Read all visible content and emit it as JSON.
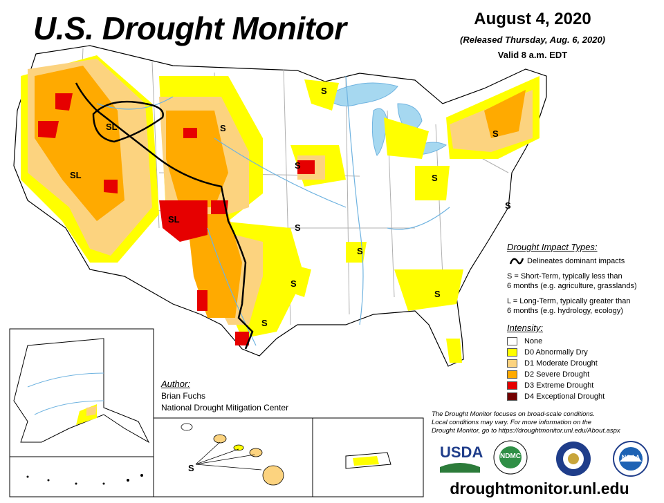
{
  "header": {
    "title": "U.S. Drought Monitor",
    "date": "August 4, 2020",
    "released": "(Released Thursday, Aug. 6, 2020)",
    "valid": "Valid 8 a.m. EDT"
  },
  "impact_types": {
    "heading": "Drought Impact Types:",
    "delineates": "Delineates dominant impacts",
    "short_term_line1": "S = Short-Term, typically less than",
    "short_term_line2": "6 months (e.g. agriculture, grasslands)",
    "long_term_line1": "L = Long-Term, typically greater than",
    "long_term_line2": "6 months (e.g. hydrology, ecology)"
  },
  "intensity": {
    "heading": "Intensity:",
    "items": [
      {
        "label": "None",
        "color": "#ffffff"
      },
      {
        "label": "D0 Abnormally Dry",
        "color": "#ffff00"
      },
      {
        "label": "D1 Moderate Drought",
        "color": "#fcd37f"
      },
      {
        "label": "D2 Severe Drought",
        "color": "#ffaa00"
      },
      {
        "label": "D3 Extreme Drought",
        "color": "#e60000"
      },
      {
        "label": "D4 Exceptional Drought",
        "color": "#730000"
      }
    ]
  },
  "author": {
    "heading": "Author:",
    "name": "Brian Fuchs",
    "org": "National Drought Mitigation Center"
  },
  "note": {
    "line1": "The Drought Monitor focuses on broad-scale conditions.",
    "line2": "Local conditions may vary. For more information on the",
    "line3": "Drought Monitor, go to https://droughtmonitor.unl.edu/About.aspx"
  },
  "logos": {
    "usda": "USDA",
    "ndmc": "NDMC",
    "noaa": "NOAA"
  },
  "url": "droughtmonitor.unl.edu",
  "map_labels": {
    "sl_label": "SL",
    "s_label": "S"
  },
  "colors": {
    "water": "#a6d8f0",
    "river": "#6fb3e0",
    "boundary": "#000000",
    "state_line": "#b0b0b0"
  }
}
